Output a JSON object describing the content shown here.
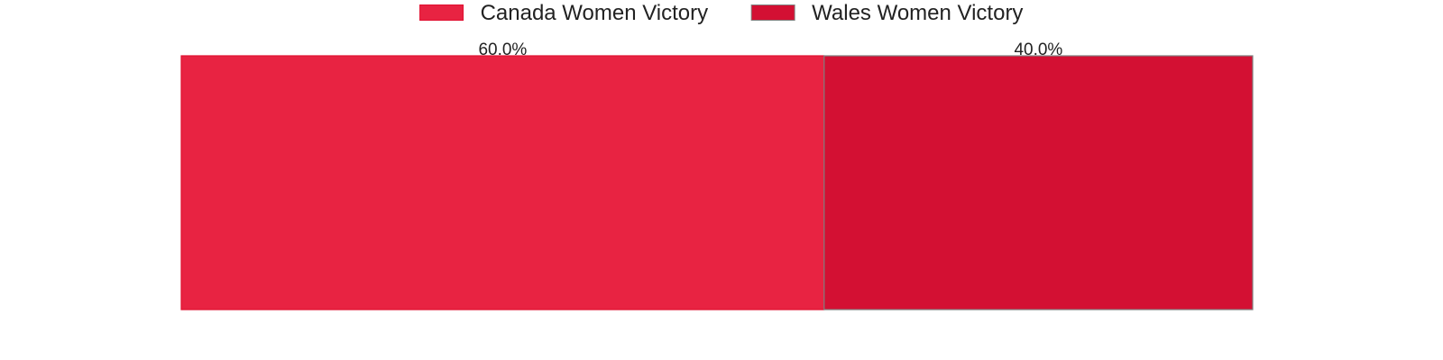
{
  "chart_data": {
    "type": "bar",
    "orientation": "horizontal",
    "stacked": true,
    "title": "",
    "xlabel": "",
    "ylabel": "",
    "xlim": [
      0,
      100
    ],
    "grid": false,
    "legend_position": "top-center",
    "value_format": "percent",
    "series": [
      {
        "name": "Canada Women Victory",
        "value": 60.0,
        "label": "60.0%",
        "color": "#e82342",
        "edge_color": "#e01030"
      },
      {
        "name": "Wales Women Victory",
        "value": 40.0,
        "label": "40.0%",
        "color": "#d31033",
        "edge_color": "#808080"
      }
    ]
  }
}
